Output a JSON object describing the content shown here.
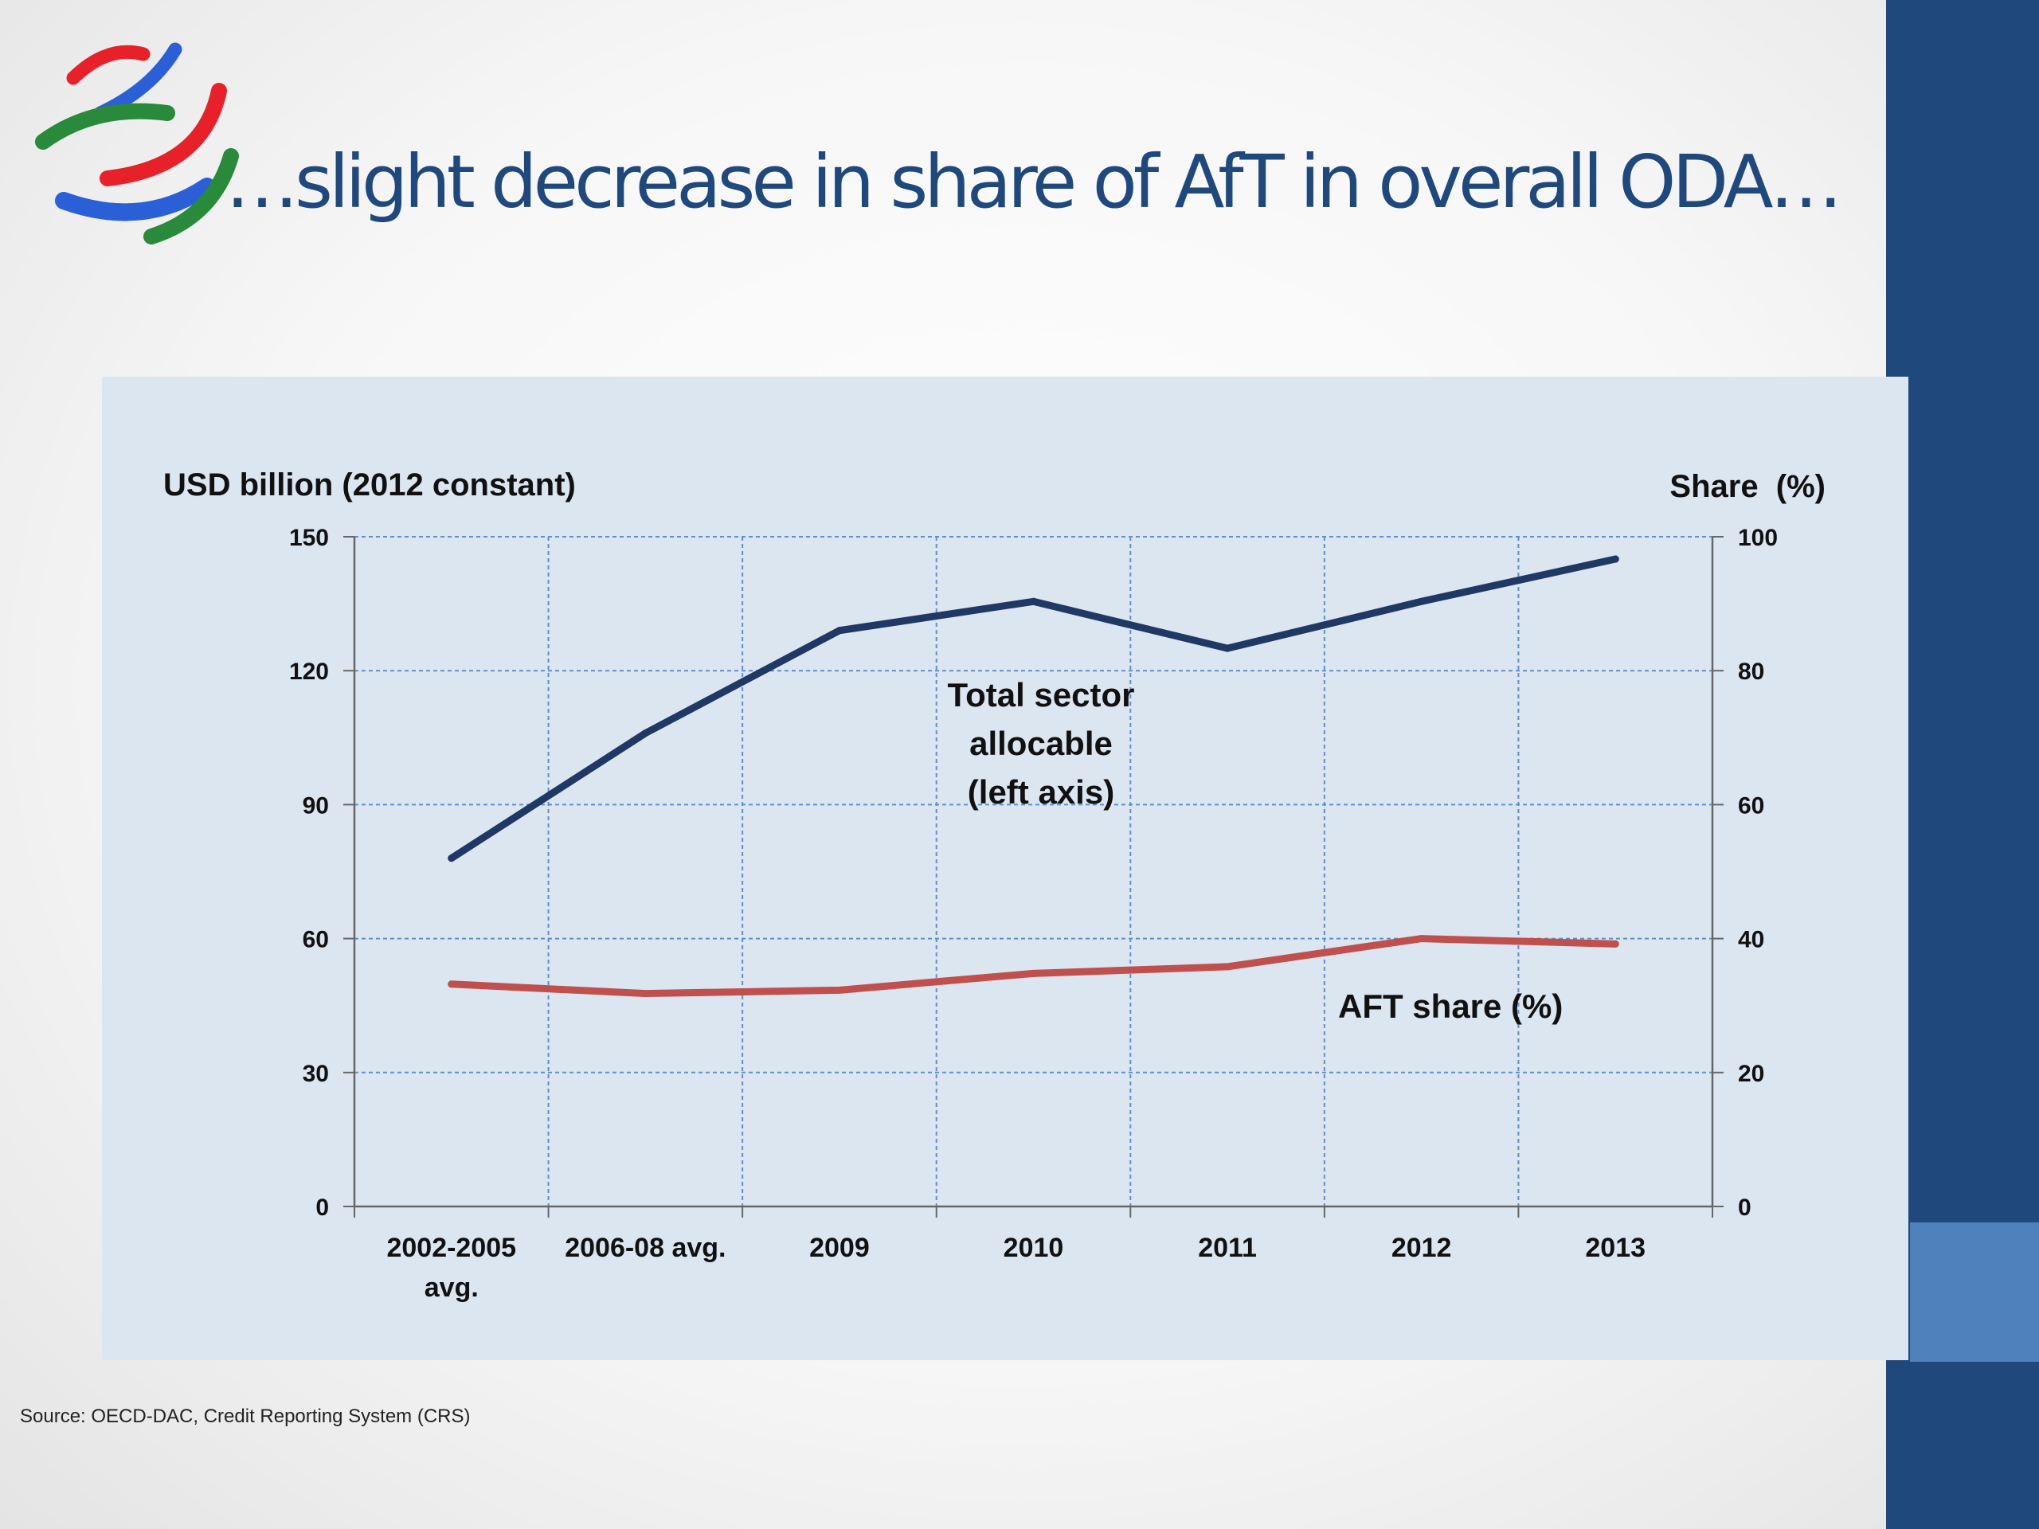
{
  "slide": {
    "title": "…slight decrease in share of AfT in overall ODA…",
    "source": "Source: OECD-DAC, Credit Reporting System (CRS)"
  },
  "colors": {
    "title": "#1f497d",
    "side_bar": "#1f497d",
    "side_bar_accent": "#4f81bd",
    "chart_background": "#dce6f1",
    "total_sector_line": "#1f3864",
    "aft_share_line": "#c0504d",
    "gridline": "#5b8fd6",
    "logo": [
      "#e8202a",
      "#2a5fd8",
      "#2a8a3c"
    ]
  },
  "logo": {
    "icon": "wto-logo-icon"
  },
  "chart_data": {
    "type": "line",
    "title": "",
    "ylabel": "USD billion (2012 constant)",
    "y2label": "Share  (%)",
    "xlabel": "",
    "ylim": [
      0,
      150
    ],
    "y2lim": [
      0,
      100
    ],
    "yticks": [
      0,
      30,
      60,
      90,
      120,
      150
    ],
    "y2ticks": [
      0,
      20,
      40,
      60,
      80,
      100
    ],
    "grid": true,
    "categories": [
      "2002-2005 avg.",
      "2006-08 avg.",
      "2009",
      "2010",
      "2011",
      "2012",
      "2013"
    ],
    "series": [
      {
        "name": "Total sector allocable (left axis)",
        "axis": "left",
        "values": [
          78,
          106,
          129,
          135.5,
          125,
          135.5,
          145
        ]
      },
      {
        "name": "AFT share (%)",
        "axis": "right",
        "values": [
          33.2,
          31.8,
          32.3,
          34.8,
          35.8,
          40,
          39.2
        ]
      }
    ],
    "annotations": [
      {
        "text": "Total sector allocable (left axis)",
        "series": 0,
        "lines": [
          "Total sector",
          "allocable",
          "(left axis)"
        ]
      },
      {
        "text": "AFT share (%)",
        "series": 1
      }
    ]
  }
}
